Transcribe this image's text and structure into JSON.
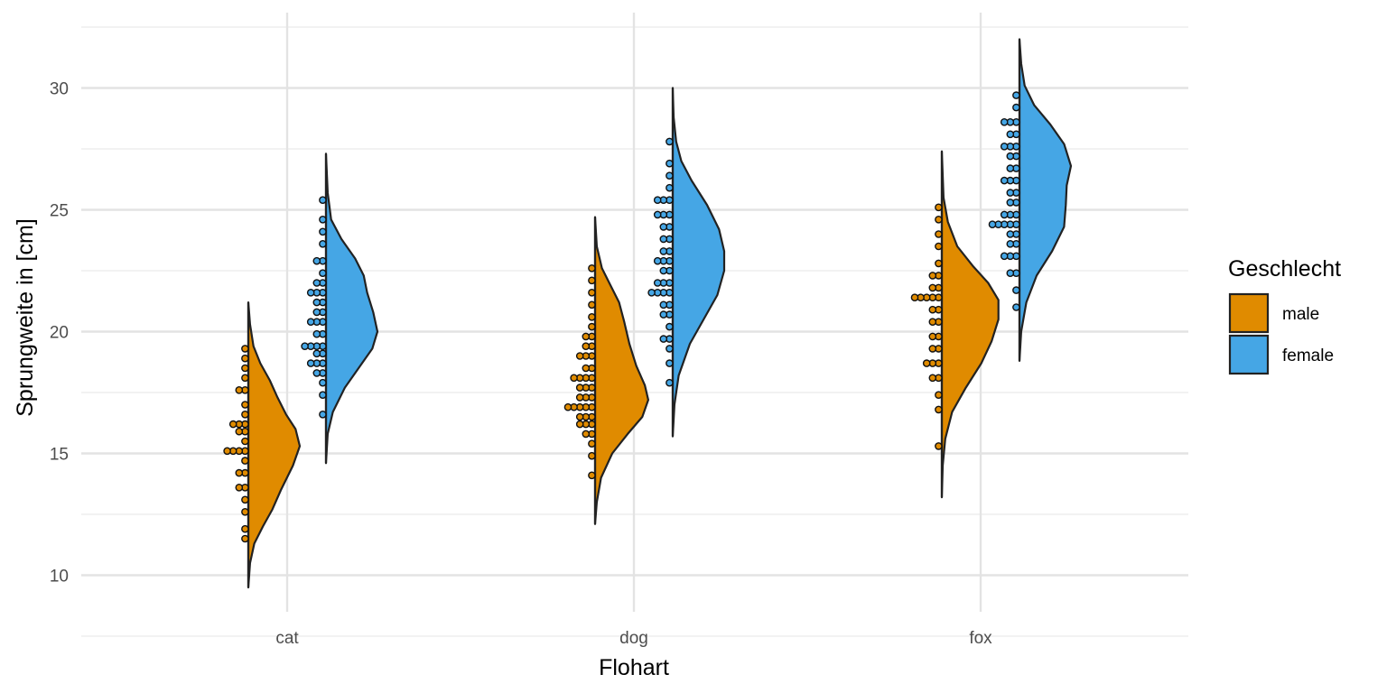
{
  "chart_data": {
    "type": "violin",
    "variant": "split half-violin with dot plot",
    "title": "",
    "xlabel": "Flohart",
    "ylabel": "Sprungweite in [cm]",
    "categories": [
      "cat",
      "dog",
      "fox"
    ],
    "ylim": [
      7.5,
      33
    ],
    "yticks": [
      10,
      15,
      20,
      25,
      30
    ],
    "grid": true,
    "legend": {
      "title": "Geschlecht",
      "position": "right",
      "entries": [
        {
          "label": "male",
          "color": "#E08B00"
        },
        {
          "label": "female",
          "color": "#45A6E5"
        }
      ]
    },
    "series": [
      {
        "name": "male",
        "color": "#E08B00",
        "side": "left-dots / right-density",
        "groups": [
          {
            "category": "cat",
            "min": 9.5,
            "max": 21.2,
            "median": 15.2,
            "density": [
              [
                9.5,
                0.0
              ],
              [
                10.5,
                0.02
              ],
              [
                11.3,
                0.07
              ],
              [
                12.0,
                0.17
              ],
              [
                12.7,
                0.28
              ],
              [
                13.5,
                0.38
              ],
              [
                14.5,
                0.52
              ],
              [
                15.3,
                0.6
              ],
              [
                16.0,
                0.55
              ],
              [
                16.6,
                0.44
              ],
              [
                17.3,
                0.34
              ],
              [
                18.0,
                0.25
              ],
              [
                18.7,
                0.14
              ],
              [
                19.4,
                0.06
              ],
              [
                20.3,
                0.02
              ],
              [
                21.2,
                0.0
              ]
            ]
          },
          {
            "category": "dog",
            "min": 12.1,
            "max": 24.7,
            "median": 17.9,
            "density": [
              [
                12.1,
                0.0
              ],
              [
                13.0,
                0.02
              ],
              [
                14.0,
                0.07
              ],
              [
                15.0,
                0.2
              ],
              [
                15.8,
                0.38
              ],
              [
                16.5,
                0.55
              ],
              [
                17.2,
                0.62
              ],
              [
                17.8,
                0.58
              ],
              [
                18.6,
                0.48
              ],
              [
                19.5,
                0.4
              ],
              [
                20.4,
                0.34
              ],
              [
                21.2,
                0.28
              ],
              [
                21.9,
                0.18
              ],
              [
                22.6,
                0.08
              ],
              [
                23.5,
                0.02
              ],
              [
                24.7,
                0.0
              ]
            ]
          },
          {
            "category": "fox",
            "min": 13.2,
            "max": 27.4,
            "median": 20.5,
            "density": [
              [
                13.2,
                0.0
              ],
              [
                14.5,
                0.01
              ],
              [
                15.6,
                0.04
              ],
              [
                16.7,
                0.12
              ],
              [
                17.7,
                0.28
              ],
              [
                18.7,
                0.46
              ],
              [
                19.6,
                0.58
              ],
              [
                20.5,
                0.66
              ],
              [
                21.3,
                0.66
              ],
              [
                22.0,
                0.54
              ],
              [
                22.7,
                0.36
              ],
              [
                23.5,
                0.18
              ],
              [
                24.5,
                0.07
              ],
              [
                25.5,
                0.02
              ],
              [
                27.4,
                0.0
              ]
            ]
          }
        ]
      },
      {
        "name": "female",
        "color": "#45A6E5",
        "side": "left-dots / right-density",
        "groups": [
          {
            "category": "cat",
            "min": 14.6,
            "max": 27.3,
            "median": 20.3,
            "density": [
              [
                14.6,
                0.0
              ],
              [
                15.8,
                0.02
              ],
              [
                16.7,
                0.08
              ],
              [
                17.7,
                0.22
              ],
              [
                18.5,
                0.38
              ],
              [
                19.3,
                0.54
              ],
              [
                20.0,
                0.6
              ],
              [
                20.8,
                0.55
              ],
              [
                21.6,
                0.48
              ],
              [
                22.3,
                0.44
              ],
              [
                23.0,
                0.34
              ],
              [
                23.8,
                0.18
              ],
              [
                24.6,
                0.06
              ],
              [
                25.7,
                0.02
              ],
              [
                27.3,
                0.0
              ]
            ]
          },
          {
            "category": "dog",
            "min": 15.7,
            "max": 30.0,
            "median": 22.9,
            "density": [
              [
                15.7,
                0.0
              ],
              [
                17.0,
                0.02
              ],
              [
                18.2,
                0.07
              ],
              [
                19.5,
                0.2
              ],
              [
                20.5,
                0.36
              ],
              [
                21.5,
                0.52
              ],
              [
                22.5,
                0.6
              ],
              [
                23.3,
                0.6
              ],
              [
                24.2,
                0.54
              ],
              [
                25.2,
                0.4
              ],
              [
                26.2,
                0.22
              ],
              [
                27.0,
                0.1
              ],
              [
                27.8,
                0.04
              ],
              [
                28.8,
                0.01
              ],
              [
                30.0,
                0.0
              ]
            ]
          },
          {
            "category": "fox",
            "min": 18.8,
            "max": 32.0,
            "median": 25.8,
            "density": [
              [
                18.8,
                0.0
              ],
              [
                20.0,
                0.02
              ],
              [
                21.2,
                0.08
              ],
              [
                22.3,
                0.2
              ],
              [
                23.3,
                0.38
              ],
              [
                24.3,
                0.52
              ],
              [
                25.2,
                0.54
              ],
              [
                26.0,
                0.55
              ],
              [
                26.8,
                0.6
              ],
              [
                27.7,
                0.52
              ],
              [
                28.5,
                0.36
              ],
              [
                29.3,
                0.17
              ],
              [
                30.1,
                0.06
              ],
              [
                31.0,
                0.02
              ],
              [
                32.0,
                0.0
              ]
            ]
          }
        ]
      }
    ],
    "dot_bins": [
      {
        "series": "male",
        "category": "cat",
        "bins": [
          [
            11.5,
            1
          ],
          [
            11.9,
            1
          ],
          [
            12.6,
            1
          ],
          [
            13.1,
            1
          ],
          [
            13.6,
            2
          ],
          [
            14.2,
            2
          ],
          [
            14.7,
            1
          ],
          [
            15.1,
            4
          ],
          [
            15.5,
            1
          ],
          [
            15.9,
            2
          ],
          [
            16.2,
            3
          ],
          [
            16.6,
            1
          ],
          [
            17.0,
            1
          ],
          [
            17.6,
            2
          ],
          [
            18.1,
            1
          ],
          [
            18.5,
            1
          ],
          [
            18.9,
            1
          ],
          [
            19.3,
            1
          ]
        ]
      },
      {
        "series": "male",
        "category": "dog",
        "bins": [
          [
            14.1,
            1
          ],
          [
            14.9,
            1
          ],
          [
            15.4,
            1
          ],
          [
            15.8,
            2
          ],
          [
            16.2,
            3
          ],
          [
            16.5,
            3
          ],
          [
            16.9,
            5
          ],
          [
            17.3,
            3
          ],
          [
            17.7,
            3
          ],
          [
            18.1,
            4
          ],
          [
            18.5,
            2
          ],
          [
            19.0,
            3
          ],
          [
            19.4,
            2
          ],
          [
            19.8,
            2
          ],
          [
            20.2,
            1
          ],
          [
            20.6,
            1
          ],
          [
            21.1,
            1
          ],
          [
            21.6,
            1
          ],
          [
            22.1,
            1
          ],
          [
            22.6,
            1
          ]
        ]
      },
      {
        "series": "male",
        "category": "fox",
        "bins": [
          [
            15.3,
            1
          ],
          [
            16.8,
            1
          ],
          [
            17.4,
            1
          ],
          [
            18.1,
            2
          ],
          [
            18.7,
            3
          ],
          [
            19.3,
            2
          ],
          [
            19.8,
            2
          ],
          [
            20.4,
            2
          ],
          [
            20.9,
            2
          ],
          [
            21.4,
            5
          ],
          [
            21.8,
            2
          ],
          [
            22.3,
            2
          ],
          [
            22.8,
            1
          ],
          [
            23.5,
            1
          ],
          [
            24.0,
            1
          ],
          [
            24.6,
            1
          ],
          [
            25.1,
            1
          ]
        ]
      },
      {
        "series": "female",
        "category": "cat",
        "bins": [
          [
            16.6,
            1
          ],
          [
            17.4,
            1
          ],
          [
            17.9,
            1
          ],
          [
            18.3,
            2
          ],
          [
            18.7,
            3
          ],
          [
            19.1,
            2
          ],
          [
            19.4,
            4
          ],
          [
            19.9,
            2
          ],
          [
            20.4,
            3
          ],
          [
            20.8,
            2
          ],
          [
            21.2,
            2
          ],
          [
            21.6,
            3
          ],
          [
            22.0,
            2
          ],
          [
            22.4,
            1
          ],
          [
            22.9,
            2
          ],
          [
            23.6,
            1
          ],
          [
            24.1,
            1
          ],
          [
            24.6,
            1
          ],
          [
            25.4,
            1
          ]
        ]
      },
      {
        "series": "female",
        "category": "dog",
        "bins": [
          [
            17.9,
            1
          ],
          [
            18.7,
            1
          ],
          [
            19.3,
            1
          ],
          [
            19.7,
            2
          ],
          [
            20.2,
            1
          ],
          [
            20.7,
            2
          ],
          [
            21.1,
            2
          ],
          [
            21.6,
            4
          ],
          [
            22.0,
            3
          ],
          [
            22.5,
            2
          ],
          [
            22.9,
            3
          ],
          [
            23.3,
            2
          ],
          [
            23.8,
            2
          ],
          [
            24.3,
            2
          ],
          [
            24.8,
            3
          ],
          [
            25.4,
            3
          ],
          [
            25.9,
            1
          ],
          [
            26.4,
            1
          ],
          [
            26.9,
            1
          ],
          [
            27.8,
            1
          ]
        ]
      },
      {
        "series": "female",
        "category": "fox",
        "bins": [
          [
            21.0,
            1
          ],
          [
            21.7,
            1
          ],
          [
            22.4,
            2
          ],
          [
            23.1,
            3
          ],
          [
            23.6,
            2
          ],
          [
            24.0,
            2
          ],
          [
            24.4,
            5
          ],
          [
            24.8,
            3
          ],
          [
            25.3,
            2
          ],
          [
            25.7,
            2
          ],
          [
            26.2,
            3
          ],
          [
            26.7,
            2
          ],
          [
            27.2,
            2
          ],
          [
            27.6,
            3
          ],
          [
            28.1,
            2
          ],
          [
            28.6,
            3
          ],
          [
            29.2,
            1
          ],
          [
            29.7,
            1
          ]
        ]
      }
    ]
  }
}
